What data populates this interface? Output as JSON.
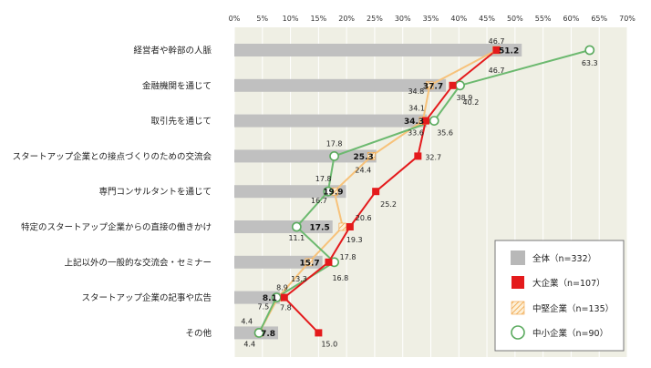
{
  "chart_data": {
    "type": "bar",
    "title": "",
    "xlabel": "",
    "ylabel": "",
    "xlim": [
      0,
      70
    ],
    "ticks": [
      "0%",
      "5%",
      "10%",
      "15%",
      "20%",
      "25%",
      "30%",
      "35%",
      "40%",
      "45%",
      "50%",
      "55%",
      "60%",
      "65%",
      "70%"
    ],
    "categories": [
      "経営者や幹部の人脈",
      "金融機関を通じて",
      "取引先を通じて",
      "スタートアップ企業との接点づくりのための交流会",
      "専門コンサルタントを通じて",
      "特定のスタートアップ企業からの直接の働きかけ",
      "上記以外の一般的な交流会・セミナー",
      "スタートアップ企業の記事や広告",
      "その他"
    ],
    "series": [
      {
        "name": "全体（n=332）",
        "kind": "bar",
        "color": "#c0c0c0",
        "values": [
          51.2,
          37.7,
          34.3,
          25.3,
          19.9,
          17.5,
          15.7,
          8.1,
          7.8
        ]
      },
      {
        "name": "大企業（n=107）",
        "kind": "line",
        "color": "#e41a1c",
        "values": [
          46.7,
          38.9,
          34.1,
          32.7,
          25.2,
          20.6,
          16.8,
          8.9,
          15.0
        ]
      },
      {
        "name": "中堅企業（n=135）",
        "kind": "line",
        "color": "#f7c27a",
        "values": [
          46.7,
          34.8,
          33.6,
          24.4,
          17.8,
          19.3,
          13.3,
          7.8,
          4.4
        ]
      },
      {
        "name": "中小企業（n=90）",
        "kind": "line",
        "color": "#6cb96f",
        "values": [
          63.3,
          40.2,
          35.6,
          17.8,
          16.7,
          11.1,
          17.8,
          7.5,
          4.4
        ]
      }
    ],
    "legend_position": "bottom-right"
  }
}
